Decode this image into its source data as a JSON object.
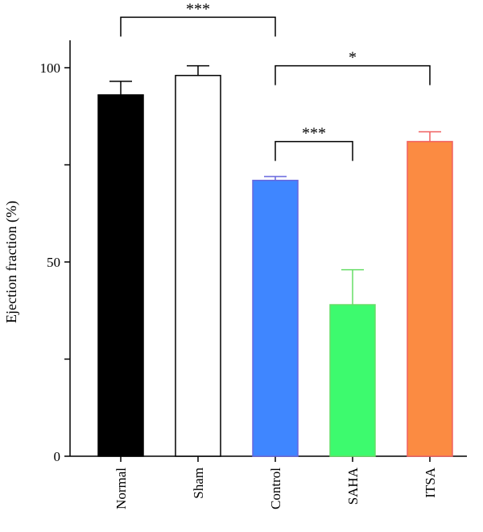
{
  "chart_data": {
    "type": "bar",
    "title": "",
    "xlabel": "",
    "ylabel": "Ejection fraction (%)",
    "ylim": [
      0,
      100
    ],
    "yticks": [
      0,
      25,
      50,
      75,
      100
    ],
    "ytick_labels": [
      "0",
      "",
      "50",
      "",
      "100"
    ],
    "categories": [
      "Normal",
      "Sham",
      "Control",
      "SAHA",
      "ITSA"
    ],
    "values": [
      93,
      98,
      71,
      39,
      81
    ],
    "errors": [
      3.5,
      2.5,
      1,
      9,
      2.5
    ],
    "fill_colors": [
      "#000000",
      "#ffffff",
      "#3f86ff",
      "#3dfa6e",
      "#fb8b42"
    ],
    "edge_colors": [
      "#000000",
      "#000000",
      "#6666dd",
      "#66dd66",
      "#f06060"
    ],
    "significance": [
      {
        "from": 0,
        "to": 2,
        "label": "***",
        "y": 113
      },
      {
        "from": 2,
        "to": 4,
        "label": "*",
        "y": 100.5
      },
      {
        "from": 2,
        "to": 3,
        "label": "***",
        "y": 81
      }
    ]
  }
}
